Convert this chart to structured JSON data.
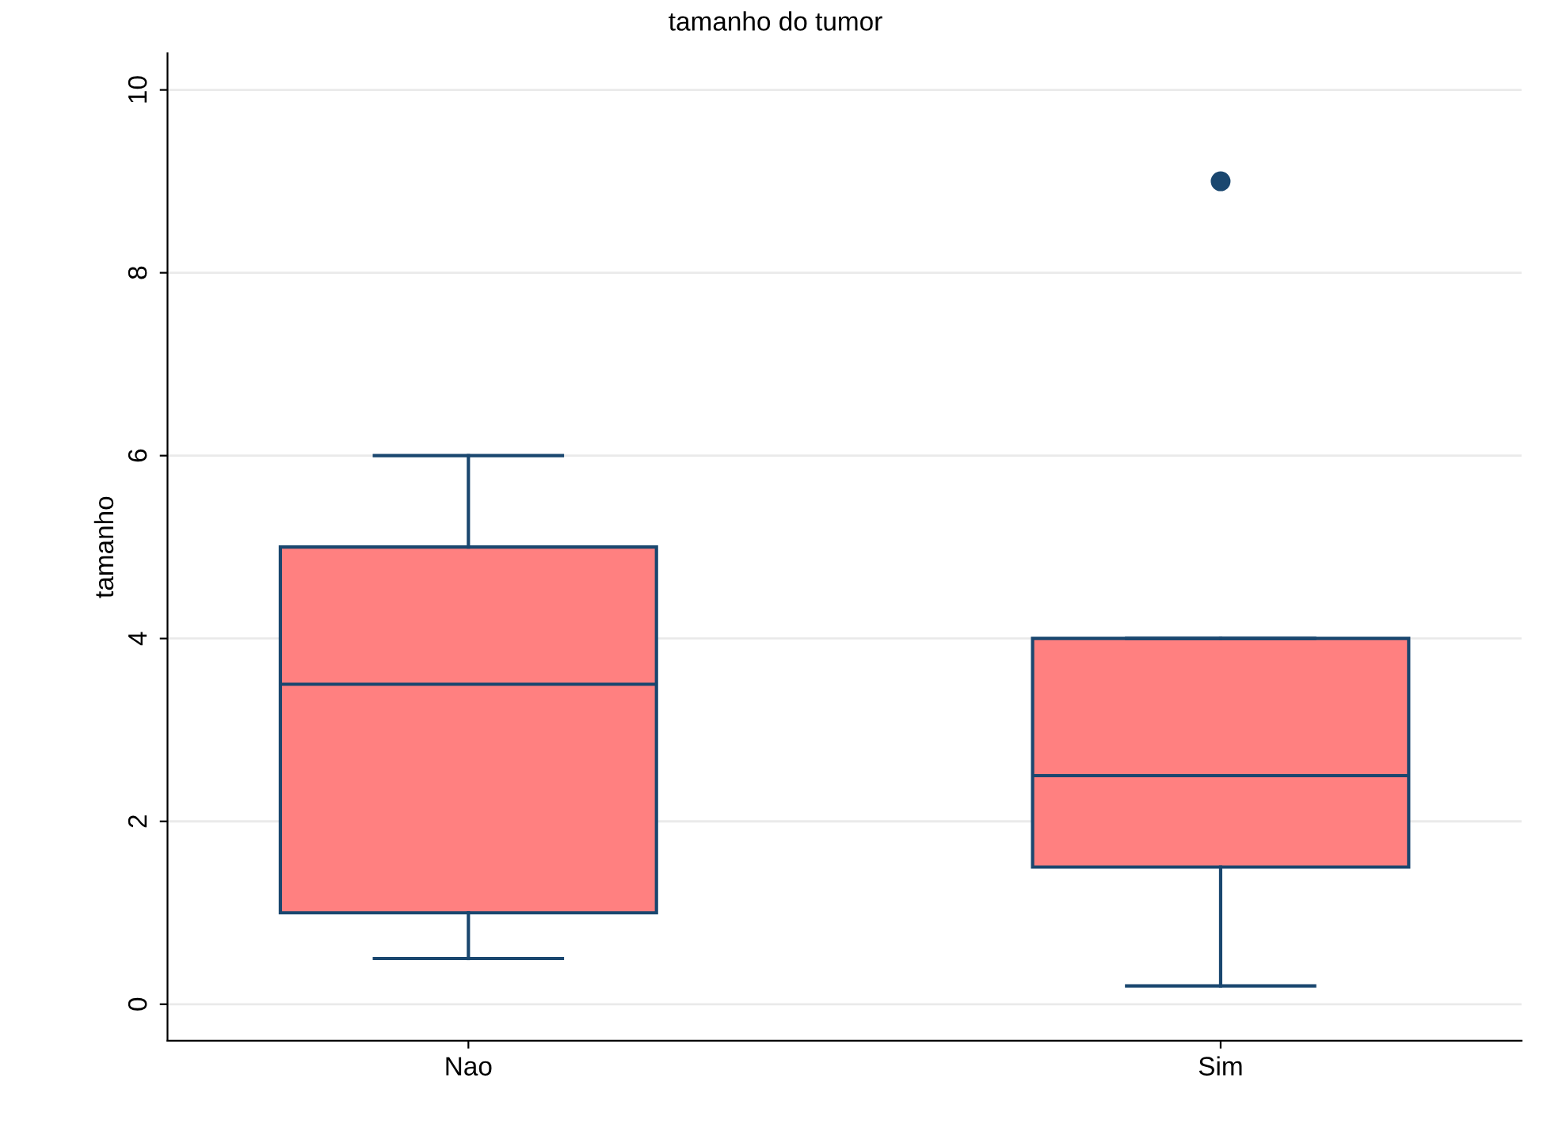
{
  "chart_data": {
    "type": "box",
    "title": "tamanho do tumor",
    "ylabel": "tamanho",
    "categories": [
      "Nao",
      "Sim"
    ],
    "boxes": [
      {
        "low": 0.5,
        "q1": 1,
        "median": 3.5,
        "q3": 5,
        "high": 6
      },
      {
        "low": 0.2,
        "q1": 1.5,
        "median": 2.5,
        "q3": 4,
        "high": 4,
        "outliers": [
          9
        ]
      }
    ],
    "color": "#ff8080",
    "ylim": [
      -0.4,
      10.4
    ],
    "yticks": [
      0,
      2,
      4,
      6,
      8,
      10
    ],
    "grid": "y"
  }
}
